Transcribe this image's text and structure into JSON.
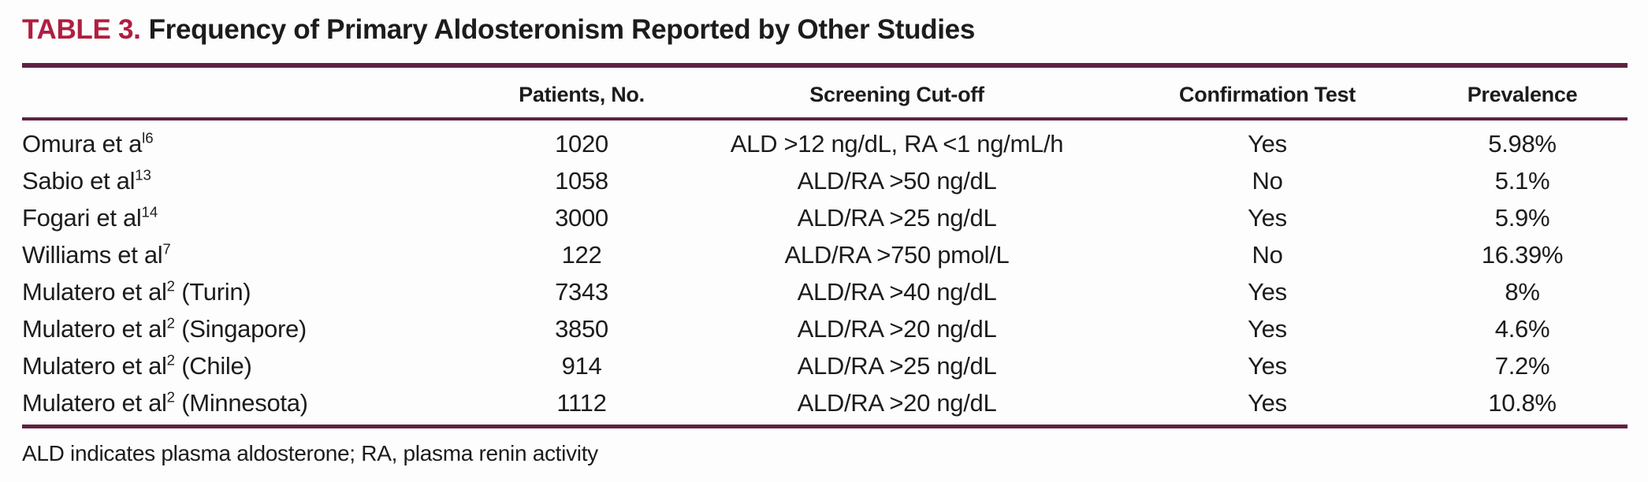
{
  "title": {
    "label": "TABLE 3.",
    "text": "Frequency of Primary Aldosteronism Reported by Other Studies"
  },
  "colors": {
    "accent_red": "#b01e41",
    "rule_maroon": "#5e2242",
    "text_ink": "#1c1c1e",
    "background": "#fdfdfd"
  },
  "table": {
    "headers": {
      "study": "",
      "patients": "Patients, No.",
      "screening": "Screening Cut-off",
      "confirmation": "Confirmation Test",
      "prevalence": "Prevalence"
    },
    "rows": [
      {
        "study_base": "Omura et a",
        "study_sup": "l6",
        "study_suffix": "",
        "patients": "1020",
        "screening": "ALD >12 ng/dL, RA <1 ng/mL/h",
        "confirmation": "Yes",
        "prevalence": "5.98%"
      },
      {
        "study_base": "Sabio et al",
        "study_sup": "13",
        "study_suffix": "",
        "patients": "1058",
        "screening": "ALD/RA >50 ng/dL",
        "confirmation": "No",
        "prevalence": "5.1%"
      },
      {
        "study_base": "Fogari et al",
        "study_sup": "14",
        "study_suffix": "",
        "patients": "3000",
        "screening": "ALD/RA >25 ng/dL",
        "confirmation": "Yes",
        "prevalence": "5.9%"
      },
      {
        "study_base": "Williams et al",
        "study_sup": "7",
        "study_suffix": "",
        "patients": "122",
        "screening": "ALD/RA >750 pmol/L",
        "confirmation": "No",
        "prevalence": "16.39%"
      },
      {
        "study_base": "Mulatero et al",
        "study_sup": "2",
        "study_suffix": " (Turin)",
        "patients": "7343",
        "screening": "ALD/RA >40 ng/dL",
        "confirmation": "Yes",
        "prevalence": "8%"
      },
      {
        "study_base": "Mulatero et al",
        "study_sup": "2",
        "study_suffix": " (Singapore)",
        "patients": "3850",
        "screening": "ALD/RA >20 ng/dL",
        "confirmation": "Yes",
        "prevalence": "4.6%"
      },
      {
        "study_base": "Mulatero et al",
        "study_sup": "2",
        "study_suffix": " (Chile)",
        "patients": "914",
        "screening": "ALD/RA >25 ng/dL",
        "confirmation": "Yes",
        "prevalence": "7.2%"
      },
      {
        "study_base": "Mulatero et al",
        "study_sup": "2",
        "study_suffix": " (Minnesota)",
        "patients": "1112",
        "screening": "ALD/RA >20 ng/dL",
        "confirmation": "Yes",
        "prevalence": "10.8%"
      }
    ]
  },
  "footnote": "ALD indicates plasma aldosterone; RA, plasma renin activity"
}
